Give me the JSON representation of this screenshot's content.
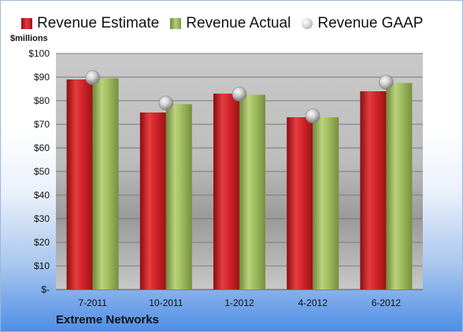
{
  "chart_data": {
    "type": "bar",
    "title": "Extreme Networks",
    "ylabel": "$millions",
    "ylim": [
      0,
      100
    ],
    "ytick_step": 10,
    "ytick_labels": [
      "$-",
      "$10",
      "$20",
      "$30",
      "$40",
      "$50",
      "$60",
      "$70",
      "$80",
      "$90",
      "$100"
    ],
    "categories": [
      "7-2011",
      "10-2011",
      "1-2012",
      "4-2012",
      "6-2012"
    ],
    "series": [
      {
        "name": "Revenue Estimate",
        "type": "bar",
        "color": "#c8181b",
        "values": [
          89,
          75,
          83,
          73,
          84
        ]
      },
      {
        "name": "Revenue Actual",
        "type": "bar",
        "color": "#9bbb59",
        "values": [
          89.5,
          78.5,
          82.5,
          73,
          87.5
        ]
      },
      {
        "name": "Revenue GAAP",
        "type": "marker",
        "color": "#c8c8c8",
        "values": [
          89.8,
          79,
          82.8,
          73.5,
          87.8
        ]
      }
    ],
    "legend_position": "top",
    "grid": true
  }
}
